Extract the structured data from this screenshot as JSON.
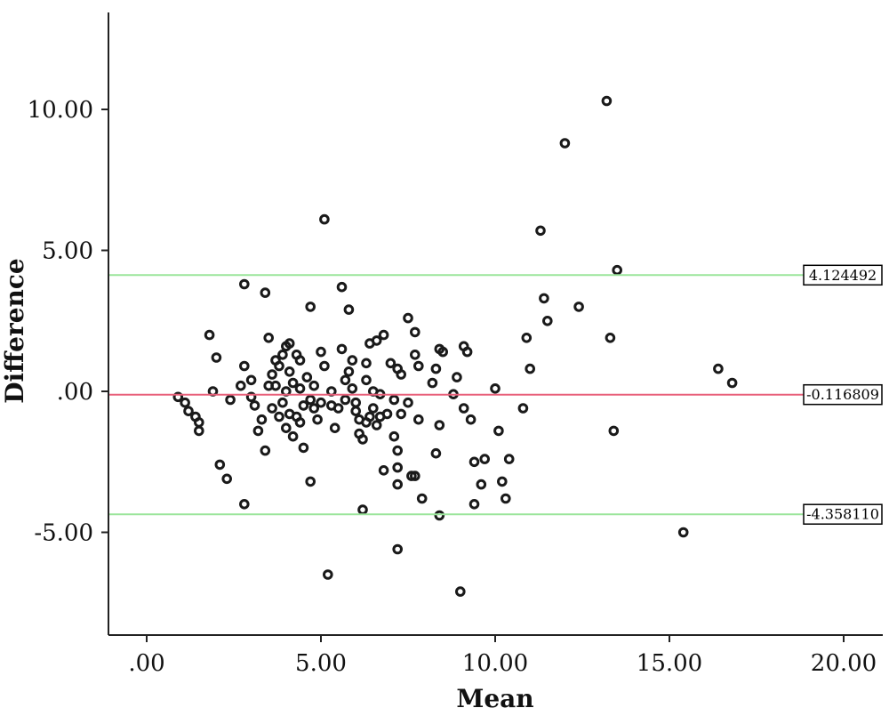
{
  "chart_data": {
    "type": "scatter",
    "xlabel": "Mean",
    "ylabel": "Difference",
    "xlim": [
      -1,
      21
    ],
    "ylim": [
      -8.5,
      13.5
    ],
    "x_ticks": [
      0,
      5,
      10,
      15,
      20
    ],
    "x_tick_labels": [
      ".00",
      "5.00",
      "10.00",
      "15.00",
      "20.00"
    ],
    "y_ticks": [
      10,
      5,
      0,
      -5
    ],
    "y_tick_labels": [
      "10.00",
      "5.00",
      ".00",
      "-5.00"
    ],
    "grid": false,
    "reference_lines": [
      {
        "value": 4.124492,
        "label": "4.124492",
        "color": "#9be59b"
      },
      {
        "value": -0.116809,
        "label": "-0.116809",
        "color": "#e8607a"
      },
      {
        "value": -4.35811,
        "label": "-4.358110",
        "color": "#9be59b"
      }
    ],
    "points": [
      [
        0.9,
        -0.2
      ],
      [
        1.1,
        -0.4
      ],
      [
        1.2,
        -0.7
      ],
      [
        1.4,
        -0.9
      ],
      [
        1.5,
        -1.1
      ],
      [
        1.5,
        -1.4
      ],
      [
        1.8,
        2.0
      ],
      [
        1.9,
        0.0
      ],
      [
        2.0,
        1.2
      ],
      [
        2.1,
        -2.6
      ],
      [
        2.3,
        -3.1
      ],
      [
        2.4,
        -0.3
      ],
      [
        2.7,
        0.2
      ],
      [
        2.8,
        0.9
      ],
      [
        2.8,
        -4.0
      ],
      [
        2.8,
        3.8
      ],
      [
        3.0,
        0.4
      ],
      [
        3.0,
        -0.2
      ],
      [
        3.1,
        -0.5
      ],
      [
        3.2,
        -1.4
      ],
      [
        3.3,
        -1.0
      ],
      [
        3.4,
        3.5
      ],
      [
        3.4,
        -2.1
      ],
      [
        3.5,
        1.9
      ],
      [
        3.5,
        0.2
      ],
      [
        3.6,
        -0.6
      ],
      [
        3.6,
        0.6
      ],
      [
        3.7,
        1.1
      ],
      [
        3.7,
        0.2
      ],
      [
        3.8,
        -0.9
      ],
      [
        3.8,
        0.9
      ],
      [
        3.9,
        1.3
      ],
      [
        3.9,
        -0.4
      ],
      [
        4.0,
        -1.3
      ],
      [
        4.0,
        0.0
      ],
      [
        4.0,
        1.6
      ],
      [
        4.1,
        0.7
      ],
      [
        4.1,
        -0.8
      ],
      [
        4.1,
        1.7
      ],
      [
        4.2,
        -1.6
      ],
      [
        4.2,
        0.3
      ],
      [
        4.3,
        1.3
      ],
      [
        4.3,
        -0.9
      ],
      [
        4.4,
        0.1
      ],
      [
        4.4,
        -1.1
      ],
      [
        4.4,
        1.1
      ],
      [
        4.5,
        -0.5
      ],
      [
        4.5,
        -2.0
      ],
      [
        4.6,
        0.5
      ],
      [
        4.7,
        -0.3
      ],
      [
        4.7,
        3.0
      ],
      [
        4.7,
        -3.2
      ],
      [
        4.8,
        0.2
      ],
      [
        4.8,
        -0.6
      ],
      [
        4.9,
        -1.0
      ],
      [
        5.0,
        1.4
      ],
      [
        5.0,
        -0.4
      ],
      [
        5.1,
        6.1
      ],
      [
        5.1,
        0.9
      ],
      [
        5.2,
        -6.5
      ],
      [
        5.3,
        -0.5
      ],
      [
        5.3,
        0.0
      ],
      [
        5.4,
        -1.3
      ],
      [
        5.5,
        -0.6
      ],
      [
        5.6,
        1.5
      ],
      [
        5.6,
        3.7
      ],
      [
        5.7,
        0.4
      ],
      [
        5.7,
        -0.3
      ],
      [
        5.8,
        0.7
      ],
      [
        5.8,
        2.9
      ],
      [
        5.9,
        1.1
      ],
      [
        5.9,
        0.1
      ],
      [
        6.0,
        -0.7
      ],
      [
        6.0,
        -0.4
      ],
      [
        6.1,
        -1.0
      ],
      [
        6.1,
        -1.5
      ],
      [
        6.2,
        -1.7
      ],
      [
        6.2,
        -4.2
      ],
      [
        6.3,
        1.0
      ],
      [
        6.3,
        0.4
      ],
      [
        6.3,
        -1.1
      ],
      [
        6.4,
        1.7
      ],
      [
        6.4,
        -0.9
      ],
      [
        6.5,
        -0.6
      ],
      [
        6.5,
        0.0
      ],
      [
        6.6,
        1.8
      ],
      [
        6.6,
        -1.2
      ],
      [
        6.7,
        -0.9
      ],
      [
        6.7,
        -0.1
      ],
      [
        6.8,
        2.0
      ],
      [
        6.8,
        -2.8
      ],
      [
        6.9,
        -0.8
      ],
      [
        7.0,
        1.0
      ],
      [
        7.1,
        -0.3
      ],
      [
        7.1,
        -1.6
      ],
      [
        7.2,
        0.8
      ],
      [
        7.2,
        -2.1
      ],
      [
        7.2,
        -2.7
      ],
      [
        7.2,
        -3.3
      ],
      [
        7.2,
        -5.6
      ],
      [
        7.3,
        0.6
      ],
      [
        7.3,
        -0.8
      ],
      [
        7.5,
        2.6
      ],
      [
        7.5,
        -0.4
      ],
      [
        7.6,
        -3.0
      ],
      [
        7.7,
        -3.0
      ],
      [
        7.7,
        2.1
      ],
      [
        7.7,
        1.3
      ],
      [
        7.8,
        0.9
      ],
      [
        7.8,
        -1.0
      ],
      [
        7.9,
        -3.8
      ],
      [
        8.2,
        0.3
      ],
      [
        8.3,
        -2.2
      ],
      [
        8.3,
        0.8
      ],
      [
        8.4,
        -1.2
      ],
      [
        8.4,
        -4.4
      ],
      [
        8.4,
        1.5
      ],
      [
        8.5,
        1.4
      ],
      [
        8.8,
        -0.1
      ],
      [
        8.9,
        0.5
      ],
      [
        9.0,
        -7.1
      ],
      [
        9.1,
        -0.6
      ],
      [
        9.1,
        1.6
      ],
      [
        9.2,
        1.4
      ],
      [
        9.3,
        -1.0
      ],
      [
        9.4,
        -2.5
      ],
      [
        9.4,
        -4.0
      ],
      [
        9.6,
        -3.3
      ],
      [
        9.7,
        -2.4
      ],
      [
        10.0,
        0.1
      ],
      [
        10.1,
        -1.4
      ],
      [
        10.2,
        -3.2
      ],
      [
        10.3,
        -3.8
      ],
      [
        10.4,
        -2.4
      ],
      [
        10.8,
        -0.6
      ],
      [
        10.9,
        1.9
      ],
      [
        11.0,
        0.8
      ],
      [
        11.3,
        5.7
      ],
      [
        11.4,
        3.3
      ],
      [
        11.5,
        2.5
      ],
      [
        12.0,
        8.8
      ],
      [
        12.4,
        3.0
      ],
      [
        13.2,
        10.3
      ],
      [
        13.3,
        1.9
      ],
      [
        13.4,
        -1.4
      ],
      [
        13.5,
        4.3
      ],
      [
        15.4,
        -5.0
      ],
      [
        16.4,
        0.8
      ],
      [
        16.8,
        0.3
      ]
    ]
  }
}
